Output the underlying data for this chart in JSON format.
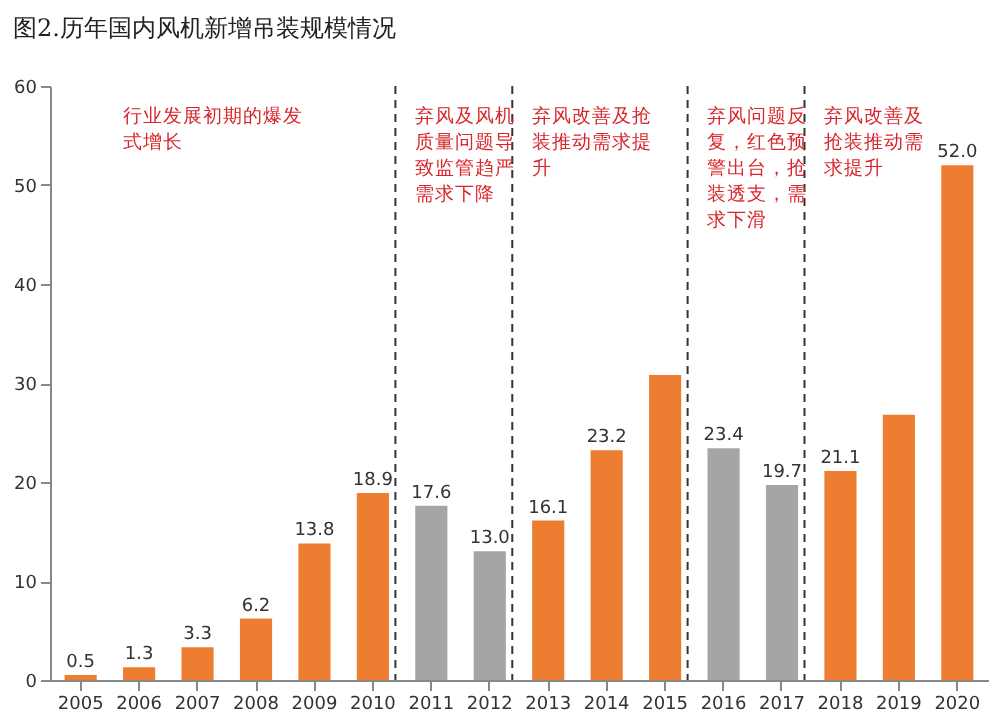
{
  "chart_data": {
    "type": "bar",
    "title": "图2.历年国内风机新增吊装规模情况",
    "categories": [
      "2005",
      "2006",
      "2007",
      "2008",
      "2009",
      "2010",
      "2011",
      "2012",
      "2013",
      "2014",
      "2015",
      "2016",
      "2017",
      "2018",
      "2019",
      "2020"
    ],
    "values": [
      0.5,
      1.3,
      3.3,
      6.2,
      13.8,
      18.9,
      17.6,
      13.0,
      16.1,
      23.2,
      30.8,
      23.4,
      19.7,
      21.1,
      26.8,
      52.0
    ],
    "colors": [
      "#ed7d31",
      "#ed7d31",
      "#ed7d31",
      "#ed7d31",
      "#ed7d31",
      "#ed7d31",
      "#a5a5a5",
      "#a5a5a5",
      "#ed7d31",
      "#ed7d31",
      "#ed7d31",
      "#a5a5a5",
      "#a5a5a5",
      "#ed7d31",
      "#ed7d31",
      "#ed7d31"
    ],
    "value_labels": [
      "0.5",
      "1.3",
      "3.3",
      "6.2",
      "13.8",
      "18.9",
      "17.6",
      "13.0",
      "16.1",
      "23.2",
      null,
      "23.4",
      "19.7",
      "21.1",
      null,
      "52.0"
    ],
    "ylim": [
      0,
      60
    ],
    "yticks": [
      0,
      10,
      20,
      30,
      40,
      50,
      60
    ],
    "grid": false,
    "ref_lines": [
      {
        "axis": "x",
        "value": "2010",
        "line_style": "dashed"
      },
      {
        "axis": "x",
        "value": "2012",
        "line_style": "dashed"
      },
      {
        "axis": "x",
        "value": "2015",
        "line_style": "dashed"
      },
      {
        "axis": "x",
        "value": "2017",
        "line_style": "dashed"
      }
    ],
    "annotations": [
      "行业发展初期的爆发式增长",
      "弃风及风机质量问题导致监管趋严需求下降",
      "弃风改善及抢装推动需求提升",
      "弃风问题反复，红色预警出台，抢装透支，需求下滑",
      "弃风改善及抢装推动需求提升"
    ]
  }
}
